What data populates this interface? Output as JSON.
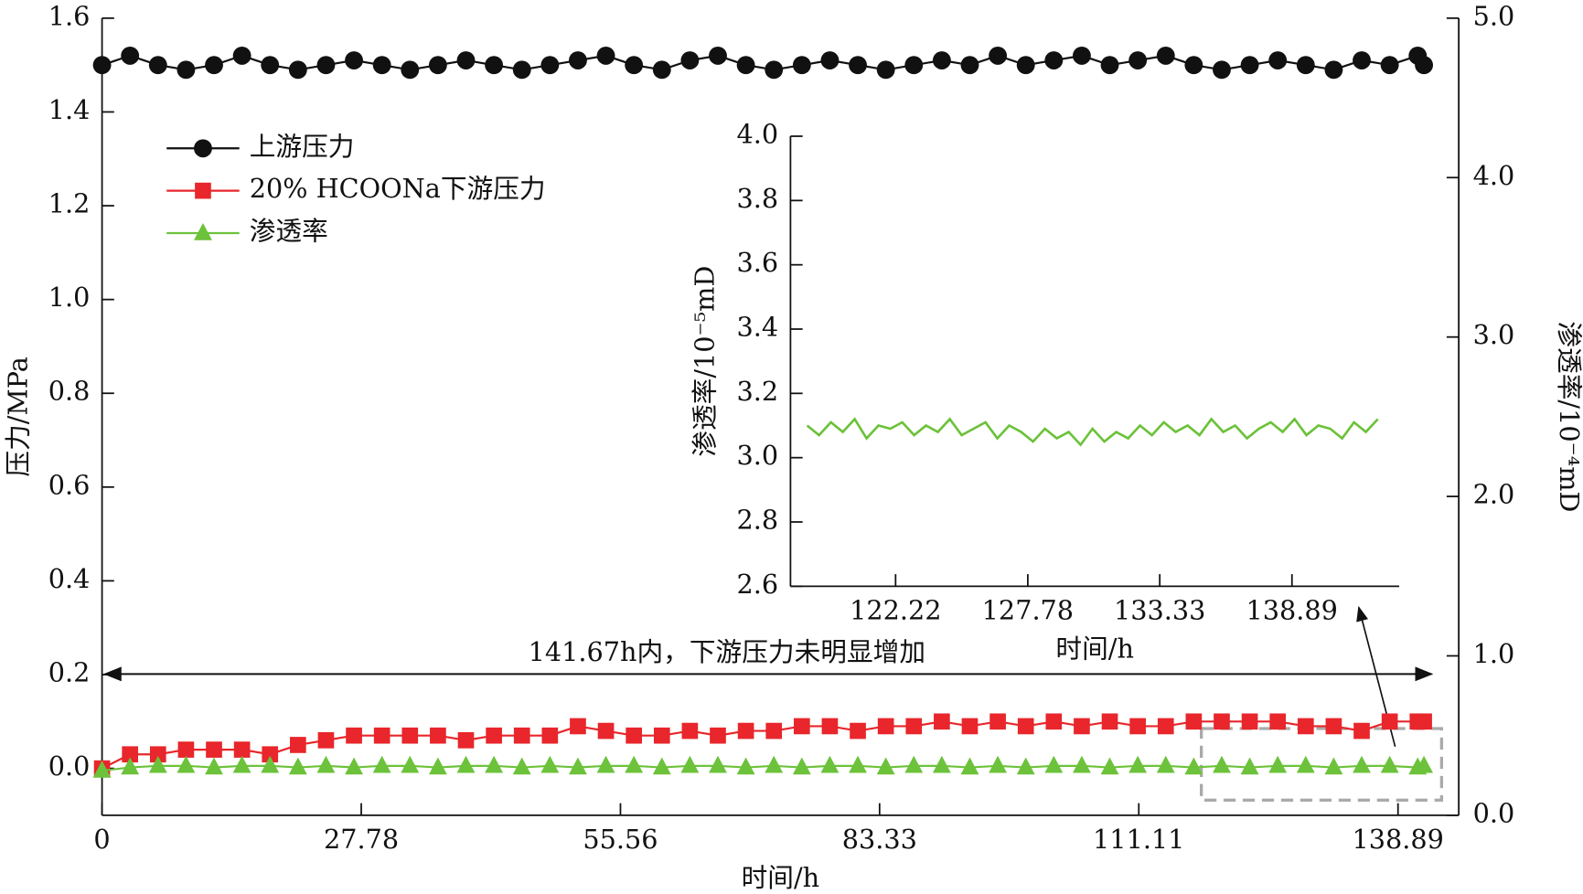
{
  "chart_data": [
    {
      "type": "line",
      "x_label": "时间/h",
      "y_label": "压力/MPa",
      "y2_label": "渗透率/10⁻⁴mD",
      "annotation": "141.67h内，下游压力未明显增加",
      "legend": "upper left",
      "xlim": [
        0,
        145.4
      ],
      "ylim": [
        -0.1,
        1.6
      ],
      "y2lim": [
        0,
        5
      ],
      "xticks": [
        0,
        27.78,
        55.56,
        83.33,
        111.11,
        138.89
      ],
      "yticks": [
        {
          "value": 0,
          "label": "0.0"
        },
        0.2,
        0.4,
        0.6,
        0.8,
        {
          "value": 1,
          "label": "1.0"
        },
        1.2,
        1.4,
        1.6
      ],
      "y2ticks": [
        {
          "value": 0,
          "label": "0.0"
        },
        {
          "value": 1,
          "label": "1.0"
        },
        {
          "value": 2,
          "label": "2.0"
        },
        {
          "value": 3,
          "label": "3.0"
        },
        {
          "value": 4,
          "label": "4.0"
        },
        {
          "value": 5,
          "label": "5.0"
        }
      ],
      "x": [
        0,
        3,
        6,
        9,
        12,
        15,
        18,
        21,
        24,
        27,
        30,
        33,
        36,
        39,
        42,
        45,
        48,
        51,
        54,
        57,
        60,
        63,
        66,
        69,
        72,
        75,
        78,
        81,
        84,
        87,
        90,
        93,
        96,
        99,
        102,
        105,
        108,
        111,
        114,
        117,
        120,
        123,
        126,
        129,
        132,
        135,
        138,
        141,
        141.67
      ],
      "series": [
        {
          "name": "上游压力",
          "color": "#111111",
          "marker": "circle",
          "values": [
            1.5,
            1.52,
            1.5,
            1.49,
            1.5,
            1.52,
            1.5,
            1.49,
            1.5,
            1.51,
            1.5,
            1.49,
            1.5,
            1.51,
            1.5,
            1.49,
            1.5,
            1.51,
            1.52,
            1.5,
            1.49,
            1.51,
            1.52,
            1.5,
            1.49,
            1.5,
            1.51,
            1.5,
            1.49,
            1.5,
            1.51,
            1.5,
            1.52,
            1.5,
            1.51,
            1.52,
            1.5,
            1.51,
            1.52,
            1.5,
            1.49,
            1.5,
            1.51,
            1.5,
            1.49,
            1.51,
            1.5,
            1.52,
            1.5
          ]
        },
        {
          "name": "20% HCOONa下游压力",
          "color": "#e8262b",
          "marker": "square",
          "values": [
            0.0,
            0.03,
            0.03,
            0.04,
            0.04,
            0.04,
            0.03,
            0.05,
            0.06,
            0.07,
            0.07,
            0.07,
            0.07,
            0.06,
            0.07,
            0.07,
            0.07,
            0.09,
            0.08,
            0.07,
            0.07,
            0.08,
            0.07,
            0.08,
            0.08,
            0.09,
            0.09,
            0.08,
            0.09,
            0.09,
            0.1,
            0.09,
            0.1,
            0.09,
            0.1,
            0.09,
            0.1,
            0.09,
            0.09,
            0.1,
            0.1,
            0.1,
            0.1,
            0.09,
            0.09,
            0.08,
            0.1,
            0.1,
            0.1
          ]
        },
        {
          "name": "渗透率",
          "color": "#6cc23a",
          "marker": "triangle",
          "axis": "y2",
          "values": [
            0.28,
            0.3,
            0.31,
            0.31,
            0.3,
            0.31,
            0.31,
            0.3,
            0.31,
            0.3,
            0.31,
            0.31,
            0.3,
            0.31,
            0.31,
            0.3,
            0.31,
            0.3,
            0.31,
            0.31,
            0.3,
            0.31,
            0.31,
            0.3,
            0.31,
            0.3,
            0.31,
            0.31,
            0.3,
            0.31,
            0.31,
            0.3,
            0.31,
            0.3,
            0.31,
            0.31,
            0.3,
            0.31,
            0.31,
            0.3,
            0.31,
            0.3,
            0.31,
            0.31,
            0.3,
            0.31,
            0.31,
            0.3,
            0.31
          ]
        }
      ]
    },
    {
      "type": "line",
      "x_label": "时间/h",
      "y_label": "渗透率/10⁻⁵mD",
      "xlim": [
        117.8,
        143.4
      ],
      "ylim": [
        2.6,
        4.0
      ],
      "xticks": [
        122.22,
        127.78,
        133.33,
        138.89
      ],
      "yticks": [
        2.6,
        2.8,
        {
          "value": 3,
          "label": "3.0"
        },
        3.2,
        3.4,
        3.6,
        3.8,
        {
          "value": 4,
          "label": "4.0"
        }
      ],
      "x": [
        118.5,
        119,
        119.5,
        120,
        120.5,
        121,
        121.5,
        122,
        122.5,
        123,
        123.5,
        124,
        124.5,
        125,
        125.5,
        126,
        126.5,
        127,
        127.5,
        128,
        128.5,
        129,
        129.5,
        130,
        130.5,
        131,
        131.5,
        132,
        132.5,
        133,
        133.5,
        134,
        134.5,
        135,
        135.5,
        136,
        136.5,
        137,
        137.5,
        138,
        138.5,
        139,
        139.5,
        140,
        140.5,
        141,
        141.5,
        142,
        142.5
      ],
      "series": [
        {
          "color": "#6cc23a",
          "values": [
            3.1,
            3.07,
            3.11,
            3.08,
            3.12,
            3.06,
            3.1,
            3.09,
            3.11,
            3.07,
            3.1,
            3.08,
            3.12,
            3.07,
            3.09,
            3.11,
            3.06,
            3.1,
            3.08,
            3.05,
            3.09,
            3.06,
            3.08,
            3.04,
            3.09,
            3.05,
            3.08,
            3.06,
            3.1,
            3.07,
            3.11,
            3.08,
            3.1,
            3.07,
            3.12,
            3.08,
            3.1,
            3.06,
            3.09,
            3.11,
            3.08,
            3.12,
            3.07,
            3.1,
            3.09,
            3.06,
            3.11,
            3.08,
            3.12
          ]
        }
      ]
    }
  ]
}
